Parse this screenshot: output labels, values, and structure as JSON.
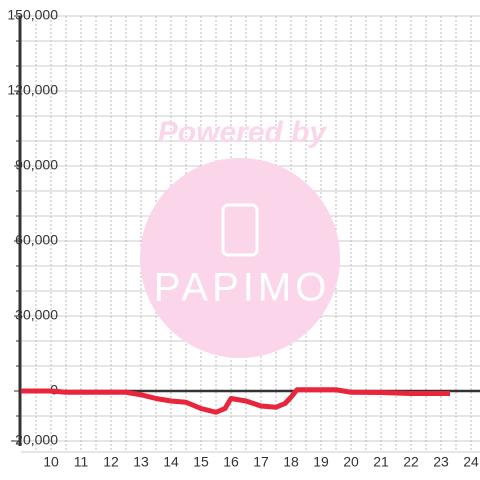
{
  "chart_data": {
    "type": "line",
    "x": [
      9,
      10,
      10.5,
      12.5,
      13,
      13.5,
      14,
      14.5,
      15,
      15.5,
      15.8,
      16,
      16.5,
      17,
      17.5,
      17.8,
      18,
      18.2,
      19,
      19.5,
      20,
      21,
      22,
      23.3
    ],
    "series": [
      {
        "color": "#e8253a",
        "values": [
          0,
          0,
          -500,
          -500,
          -1500,
          -3000,
          -4000,
          -4500,
          -7000,
          -8500,
          -7000,
          -3000,
          -4000,
          -6000,
          -6500,
          -5000,
          -2500,
          500,
          500,
          500,
          -500,
          -600,
          -1000,
          -1000
        ]
      }
    ],
    "xlim": [
      9,
      24.3
    ],
    "xticks": [
      10,
      11,
      12,
      13,
      14,
      15,
      16,
      17,
      18,
      19,
      20,
      21,
      22,
      23,
      24
    ],
    "xgrid": [
      9.5,
      10,
      10.5,
      11,
      11.5,
      12,
      12.5,
      13,
      13.5,
      14,
      14.5,
      15,
      15.5,
      16,
      16.5,
      17,
      17.5,
      18,
      18.5,
      19,
      19.5,
      20,
      20.5,
      21,
      21.5,
      22,
      22.5,
      23,
      23.5,
      24
    ],
    "ylim": [
      -22000,
      150000
    ],
    "yticks": [
      {
        "value": -20000,
        "label": "-20,000"
      },
      0,
      {
        "value": 30000,
        "label": "30,000"
      },
      {
        "value": 60000,
        "label": "60,000"
      },
      {
        "value": 90000,
        "label": "90,000"
      },
      {
        "value": 120000,
        "label": "120,000"
      },
      {
        "value": 150000,
        "label": "150,000"
      }
    ],
    "ygrid": [
      -10000,
      10000,
      20000,
      40000,
      50000,
      70000,
      80000,
      100000,
      110000,
      130000,
      140000
    ]
  },
  "watermark": {
    "text": "Powered by",
    "logo": "PAPIMO"
  }
}
